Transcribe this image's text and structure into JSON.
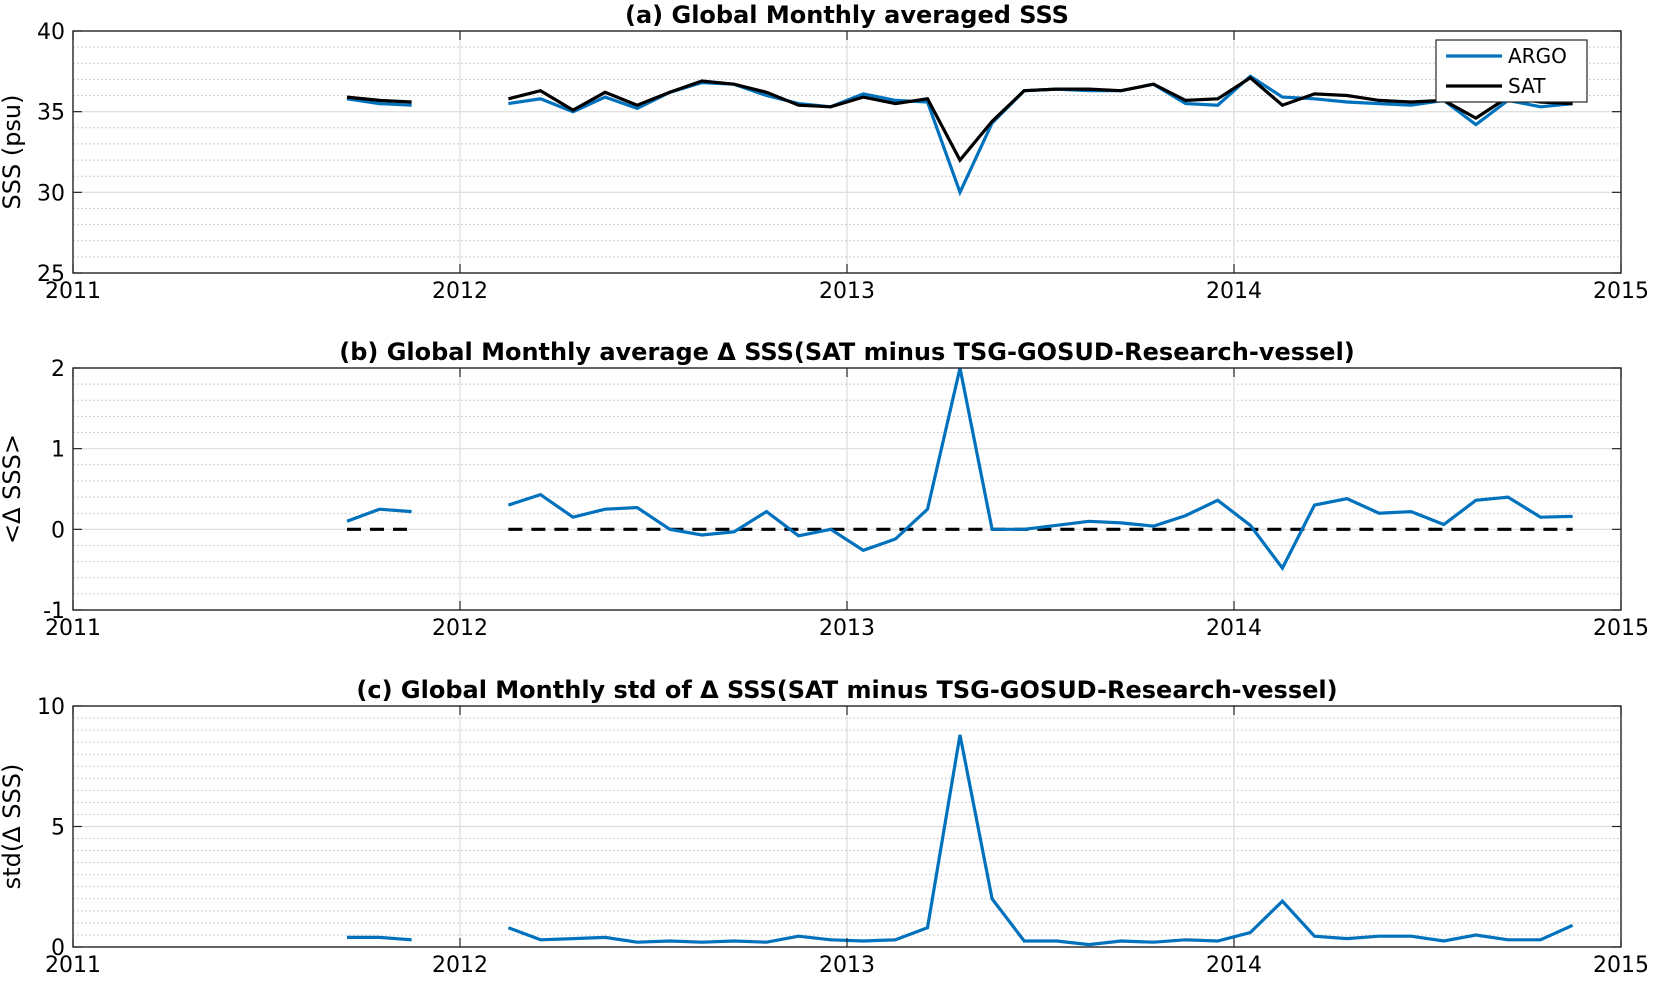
{
  "chart_data": [
    {
      "type": "line",
      "title": "(a) Global Monthly averaged SSS",
      "xlabel": "",
      "ylabel": "SSS (psu)",
      "xlim": [
        2011,
        2015
      ],
      "ylim": [
        25,
        40
      ],
      "xticks": [
        2011,
        2012,
        2013,
        2014,
        2015
      ],
      "xtick_labels": [
        "2011",
        "2012",
        "2013",
        "2014",
        "2015"
      ],
      "yticks": [
        25,
        30,
        35,
        40
      ],
      "ytick_labels": [
        "25",
        "30",
        "35",
        "40"
      ],
      "grid": true,
      "minor_grid": true,
      "legend": "top-right",
      "series": [
        {
          "name": "ARGO",
          "color": "#0072BD",
          "x": [
            2011.708,
            2011.792,
            2011.875,
            null,
            2012.125,
            2012.208,
            2012.292,
            2012.375,
            2012.458,
            2012.542,
            2012.625,
            2012.708,
            2012.792,
            2012.875,
            2012.958,
            2013.042,
            2013.125,
            2013.208,
            2013.292,
            2013.375,
            2013.458,
            2013.542,
            2013.625,
            2013.708,
            2013.792,
            2013.875,
            2013.958,
            2014.042,
            2014.125,
            2014.208,
            2014.292,
            2014.375,
            2014.458,
            2014.542,
            2014.625,
            2014.708,
            2014.792,
            2014.875
          ],
          "values": [
            35.8,
            35.5,
            35.4,
            null,
            35.5,
            35.8,
            35.0,
            35.9,
            35.2,
            36.2,
            36.8,
            36.7,
            36.0,
            35.5,
            35.3,
            36.1,
            35.7,
            35.6,
            30.0,
            34.3,
            36.3,
            36.4,
            36.3,
            36.3,
            36.7,
            35.5,
            35.4,
            37.2,
            35.9,
            35.8,
            35.6,
            35.5,
            35.4,
            35.7,
            34.2,
            35.7,
            35.3,
            35.5
          ]
        },
        {
          "name": "SAT",
          "color": "#000000",
          "x": [
            2011.708,
            2011.792,
            2011.875,
            null,
            2012.125,
            2012.208,
            2012.292,
            2012.375,
            2012.458,
            2012.542,
            2012.625,
            2012.708,
            2012.792,
            2012.875,
            2012.958,
            2013.042,
            2013.125,
            2013.208,
            2013.292,
            2013.375,
            2013.458,
            2013.542,
            2013.625,
            2013.708,
            2013.792,
            2013.875,
            2013.958,
            2014.042,
            2014.125,
            2014.208,
            2014.292,
            2014.375,
            2014.458,
            2014.542,
            2014.625,
            2014.708,
            2014.792,
            2014.875
          ],
          "values": [
            35.9,
            35.7,
            35.6,
            null,
            35.8,
            36.3,
            35.1,
            36.2,
            35.4,
            36.2,
            36.9,
            36.7,
            36.2,
            35.4,
            35.3,
            35.9,
            35.5,
            35.8,
            32.0,
            34.4,
            36.3,
            36.4,
            36.4,
            36.3,
            36.7,
            35.7,
            35.8,
            37.1,
            35.4,
            36.1,
            36.0,
            35.7,
            35.6,
            35.7,
            34.6,
            35.9,
            35.6,
            35.5
          ]
        }
      ]
    },
    {
      "type": "line",
      "title": "(b) Global Monthly average Δ SSS(SAT minus TSG-GOSUD-Research-vessel)",
      "xlabel": "",
      "ylabel": "<Δ SSS>",
      "xlim": [
        2011,
        2015
      ],
      "ylim": [
        -1,
        2
      ],
      "xticks": [
        2011,
        2012,
        2013,
        2014,
        2015
      ],
      "xtick_labels": [
        "2011",
        "2012",
        "2013",
        "2014",
        "2015"
      ],
      "yticks": [
        -1,
        0,
        1,
        2
      ],
      "ytick_labels": [
        "-1",
        "0",
        "1",
        "2"
      ],
      "grid": true,
      "minor_grid": true,
      "reference_line": {
        "y": 0,
        "style": "dashed",
        "color": "#000000",
        "segments": [
          [
            2011.708,
            2011.875
          ],
          [
            2012.125,
            2014.875
          ]
        ]
      },
      "series": [
        {
          "color": "#0072BD",
          "x": [
            2011.708,
            2011.792,
            2011.875,
            null,
            2012.125,
            2012.208,
            2012.292,
            2012.375,
            2012.458,
            2012.542,
            2012.625,
            2012.708,
            2012.792,
            2012.875,
            2012.958,
            2013.042,
            2013.125,
            2013.208,
            2013.292,
            2013.375,
            2013.458,
            2013.542,
            2013.625,
            2013.708,
            2013.792,
            2013.875,
            2013.958,
            2014.042,
            2014.125,
            2014.208,
            2014.292,
            2014.375,
            2014.458,
            2014.542,
            2014.625,
            2014.708,
            2014.792,
            2014.875
          ],
          "values": [
            0.1,
            0.25,
            0.22,
            null,
            0.3,
            0.43,
            0.15,
            0.25,
            0.27,
            0.0,
            -0.07,
            -0.03,
            0.22,
            -0.08,
            0.0,
            -0.26,
            -0.12,
            0.25,
            2.0,
            0.0,
            0.0,
            0.05,
            0.1,
            0.08,
            0.04,
            0.17,
            0.36,
            0.05,
            -0.48,
            0.3,
            0.38,
            0.2,
            0.22,
            0.06,
            0.36,
            0.4,
            0.15,
            0.16
          ]
        }
      ]
    },
    {
      "type": "line",
      "title": "(c) Global Monthly std of Δ SSS(SAT minus TSG-GOSUD-Research-vessel)",
      "xlabel": "",
      "ylabel": "std(Δ SSS)",
      "xlim": [
        2011,
        2015
      ],
      "ylim": [
        0,
        10
      ],
      "xticks": [
        2011,
        2012,
        2013,
        2014,
        2015
      ],
      "xtick_labels": [
        "2011",
        "2012",
        "2013",
        "2014",
        "2015"
      ],
      "yticks": [
        0,
        5,
        10
      ],
      "ytick_labels": [
        "0",
        "5",
        "10"
      ],
      "grid": true,
      "minor_grid": true,
      "series": [
        {
          "color": "#0072BD",
          "x": [
            2011.708,
            2011.792,
            2011.875,
            null,
            2012.125,
            2012.208,
            2012.292,
            2012.375,
            2012.458,
            2012.542,
            2012.625,
            2012.708,
            2012.792,
            2012.875,
            2012.958,
            2013.042,
            2013.125,
            2013.208,
            2013.292,
            2013.375,
            2013.458,
            2013.542,
            2013.625,
            2013.708,
            2013.792,
            2013.875,
            2013.958,
            2014.042,
            2014.125,
            2014.208,
            2014.292,
            2014.375,
            2014.458,
            2014.542,
            2014.625,
            2014.708,
            2014.792,
            2014.875
          ],
          "values": [
            0.4,
            0.4,
            0.3,
            null,
            0.8,
            0.3,
            0.35,
            0.4,
            0.2,
            0.25,
            0.2,
            0.25,
            0.2,
            0.45,
            0.3,
            0.25,
            0.3,
            0.8,
            8.8,
            2.0,
            0.25,
            0.25,
            0.1,
            0.25,
            0.2,
            0.3,
            0.25,
            0.6,
            1.9,
            0.45,
            0.35,
            0.45,
            0.45,
            0.25,
            0.5,
            0.3,
            0.3,
            0.9
          ]
        }
      ]
    }
  ]
}
